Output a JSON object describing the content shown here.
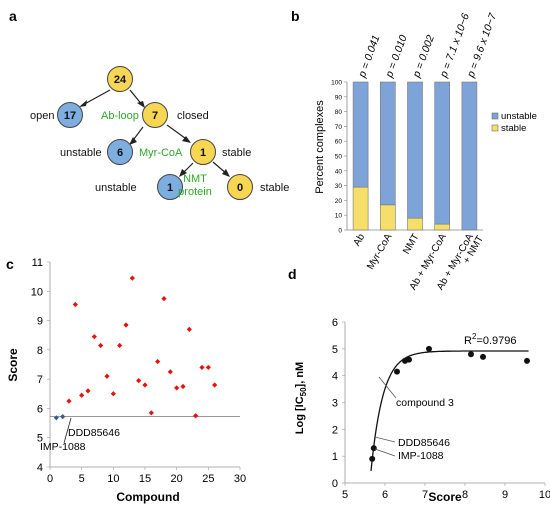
{
  "panel_labels": {
    "a": "a",
    "b": "b",
    "c": "c",
    "d": "d"
  },
  "colors": {
    "node_yellow": "#F7D653",
    "node_blue": "#7EADE0",
    "green_text": "#2DA829",
    "bar_unstable": "#7EA3D8",
    "bar_stable": "#F5DE6A",
    "scatter_red": "#E8120C",
    "scatter_blue": "#3B5C8C",
    "fit_dark": "#111111"
  },
  "panel_a": {
    "nodes": [
      {
        "id": "n24",
        "value": "24",
        "color": "yellow"
      },
      {
        "id": "n17",
        "value": "17",
        "color": "blue"
      },
      {
        "id": "n7",
        "value": "7",
        "color": "yellow"
      },
      {
        "id": "n6",
        "value": "6",
        "color": "blue"
      },
      {
        "id": "n1s",
        "value": "1",
        "color": "yellow"
      },
      {
        "id": "n1u",
        "value": "1",
        "color": "blue"
      },
      {
        "id": "n0",
        "value": "0",
        "color": "yellow"
      }
    ],
    "labels": {
      "open": "open",
      "closed": "closed",
      "unstable1": "unstable",
      "stable1": "stable",
      "unstable2": "unstable",
      "stable2": "stable",
      "ab_loop": "Ab-loop",
      "myr_coa": "Myr-CoA",
      "nmt_line1": "NMT",
      "nmt_line2": "protein"
    }
  },
  "chart_data": [
    {
      "panel": "b",
      "type": "bar",
      "stacked": true,
      "categories": [
        "Ab",
        "Myr-CoA",
        "NMT",
        "Ab + Myr-CoA",
        "Ab + Myr-CoA + NMT"
      ],
      "category_lines": [
        [
          "Ab"
        ],
        [
          "Myr-CoA"
        ],
        [
          "NMT"
        ],
        [
          "Ab + Myr-CoA"
        ],
        [
          "Ab + Myr-CoA",
          "+ NMT"
        ]
      ],
      "p_values": [
        "p = 0.041",
        "p = 0.010",
        "p = 0.002",
        "p = 7.1 x 10−6",
        "p = 9.6 x 10−7"
      ],
      "series": [
        {
          "name": "stable",
          "values": [
            29,
            17,
            8,
            4,
            0
          ]
        },
        {
          "name": "unstable",
          "values": [
            71,
            83,
            92,
            96,
            100
          ]
        }
      ],
      "ylabel": "Percent complexes",
      "ylim": [
        0,
        100
      ],
      "yticks": [
        "0",
        "10",
        "20",
        "30",
        "40",
        "50",
        "60",
        "70",
        "80",
        "90",
        "100"
      ],
      "legend": [
        "unstable",
        "stable"
      ],
      "legend_position": "right"
    },
    {
      "panel": "c",
      "type": "scatter",
      "xlabel": "Compound",
      "ylabel": "Score",
      "xlim": [
        0,
        30
      ],
      "ylim": [
        4,
        11
      ],
      "xticks": [
        "0",
        "5",
        "10",
        "15",
        "20",
        "25",
        "30"
      ],
      "yticks": [
        "4",
        "5",
        "6",
        "7",
        "8",
        "9",
        "10",
        "11"
      ],
      "threshold_y": 5.72,
      "series": [
        {
          "name": "",
          "marker": "diamond-red",
          "points": [
            [
              3,
              6.25
            ],
            [
              4,
              9.55
            ],
            [
              5,
              6.45
            ],
            [
              6,
              6.6
            ],
            [
              7,
              8.45
            ],
            [
              8,
              8.15
            ],
            [
              9,
              7.1
            ],
            [
              10,
              6.5
            ],
            [
              11,
              8.15
            ],
            [
              12,
              8.85
            ],
            [
              13,
              10.45
            ],
            [
              14,
              6.95
            ],
            [
              15,
              6.8
            ],
            [
              16,
              5.85
            ],
            [
              17,
              7.6
            ],
            [
              18,
              9.75
            ],
            [
              19,
              7.25
            ],
            [
              20,
              6.7
            ],
            [
              21,
              6.75
            ],
            [
              22,
              8.7
            ],
            [
              23,
              5.75
            ],
            [
              24,
              7.4
            ],
            [
              25,
              7.4
            ],
            [
              26,
              6.8
            ]
          ]
        },
        {
          "name": "",
          "marker": "diamond-blue",
          "points": [
            [
              1,
              5.68
            ],
            [
              2,
              5.72
            ]
          ]
        }
      ],
      "annotations": [
        "DDD85646",
        "IMP-1088"
      ]
    },
    {
      "panel": "d",
      "type": "scatter",
      "xlabel": "Score",
      "ylabel": "Log [IC50], nM",
      "xlim": [
        5,
        10
      ],
      "ylim": [
        0,
        6
      ],
      "xticks": [
        "5",
        "6",
        "7",
        "8",
        "9",
        "10"
      ],
      "yticks": [
        "0",
        "1",
        "2",
        "3",
        "4",
        "5",
        "6"
      ],
      "points": [
        [
          5.68,
          0.9
        ],
        [
          5.72,
          1.3
        ],
        [
          6.3,
          4.15
        ],
        [
          6.5,
          4.55
        ],
        [
          6.6,
          4.6
        ],
        [
          7.1,
          5.0
        ],
        [
          8.15,
          4.8
        ],
        [
          8.45,
          4.7
        ],
        [
          9.55,
          4.55
        ]
      ],
      "fit": {
        "type": "exponential",
        "plateau": 4.92,
        "x0": 5.65,
        "y0": 0.45,
        "k": 3.3
      },
      "r_squared_label": "R",
      "r_squared_value": "=0.9796",
      "annotations": [
        "compound 3",
        "DDD85646",
        "IMP-1088"
      ]
    }
  ]
}
